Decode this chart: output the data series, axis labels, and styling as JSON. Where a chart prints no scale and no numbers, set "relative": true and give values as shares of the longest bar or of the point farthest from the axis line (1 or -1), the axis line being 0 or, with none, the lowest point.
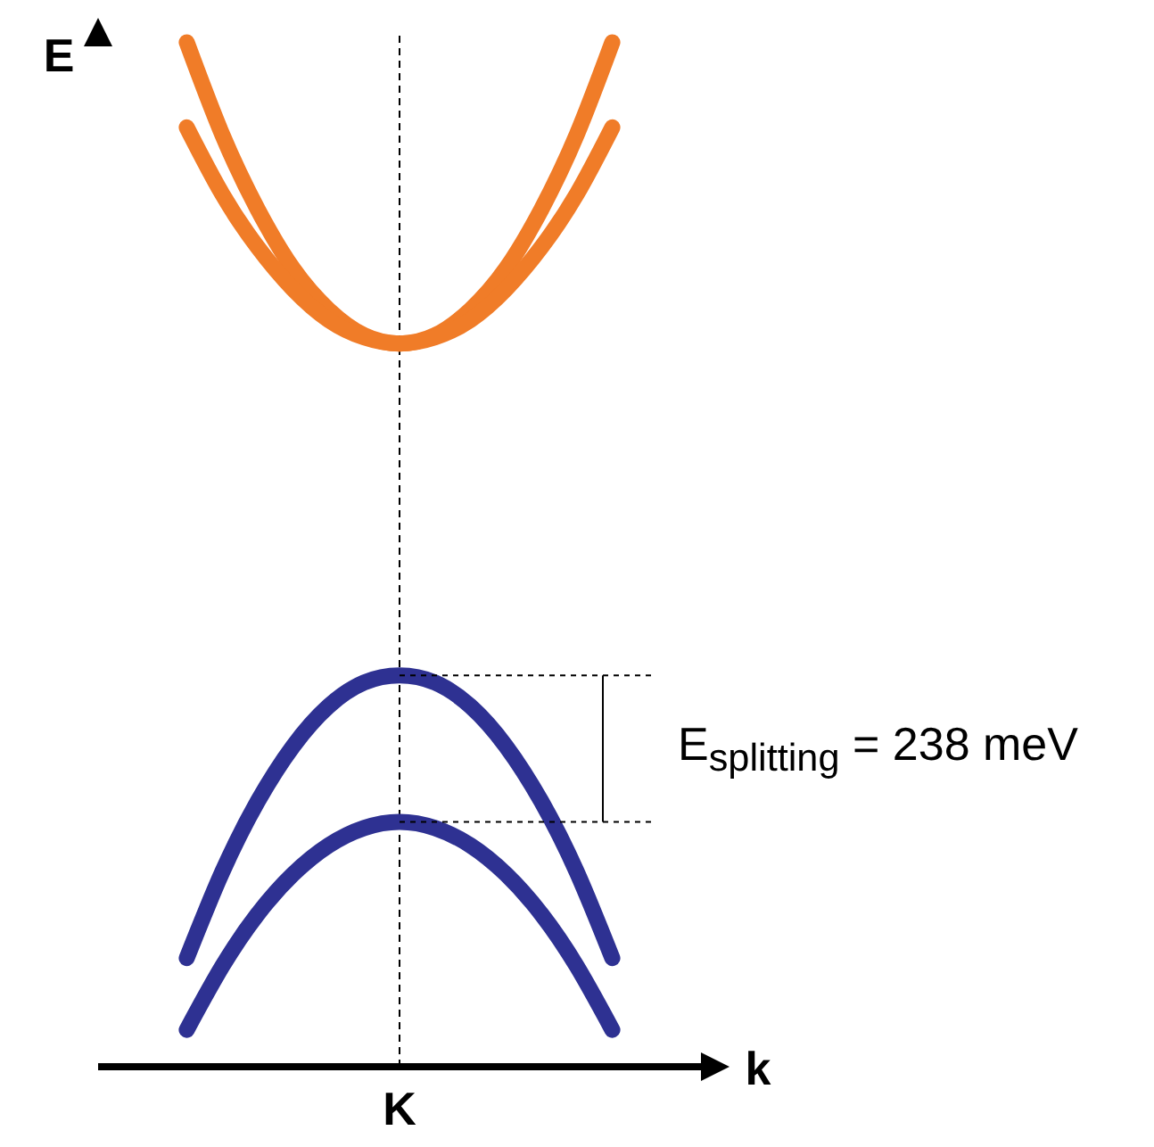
{
  "chart_data": {
    "type": "line",
    "relative": true,
    "xlabel": "k",
    "ylabel": "E",
    "marker": "none",
    "line_style": "solid",
    "categories": [
      null,
      null,
      null,
      null,
      null,
      null,
      null,
      null,
      null,
      null,
      null,
      null,
      null
    ],
    "series": [
      {
        "color": "#f07c28",
        "values": [
          1.0,
          0.91,
          0.837,
          0.779,
          0.739,
          0.714,
          0.706,
          0.714,
          0.739,
          0.779,
          0.837,
          0.91,
          1.0
        ]
      },
      {
        "color": "#f07c28",
        "values": [
          0.917,
          0.852,
          0.8,
          0.759,
          0.729,
          0.712,
          0.706,
          0.712,
          0.729,
          0.759,
          0.8,
          0.852,
          0.917
        ]
      },
      {
        "color": "#2e3192",
        "values": [
          0.106,
          0.19,
          0.259,
          0.313,
          0.352,
          0.375,
          0.382,
          0.375,
          0.352,
          0.313,
          0.259,
          0.19,
          0.106
        ]
      },
      {
        "color": "#2e3192",
        "values": [
          0.036,
          0.098,
          0.149,
          0.188,
          0.216,
          0.233,
          0.239,
          0.233,
          0.216,
          0.188,
          0.149,
          0.098,
          0.036
        ]
      }
    ],
    "ref_lines": [
      {
        "axis": "x",
        "label": "K",
        "color": "#000000",
        "line_style": "dashed"
      }
    ],
    "annotations": [
      "E$_{splitting}$ = 238 meV"
    ]
  }
}
